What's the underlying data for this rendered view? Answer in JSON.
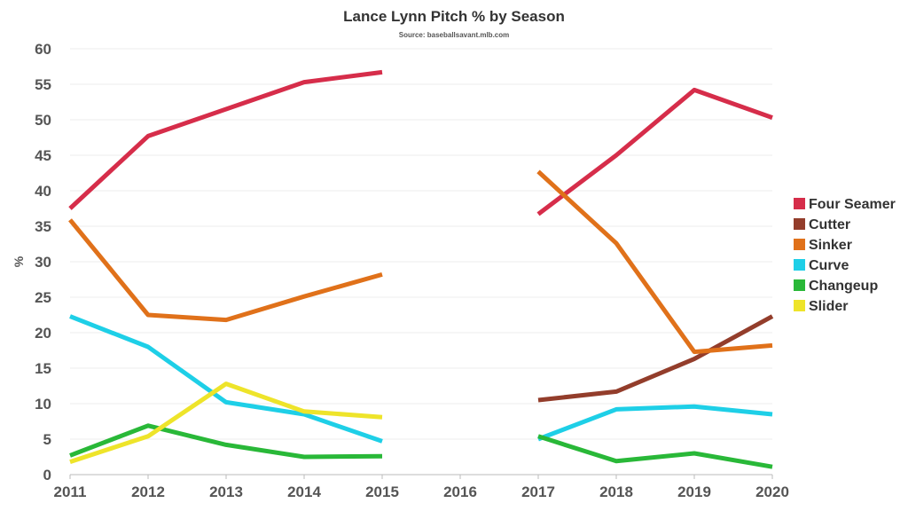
{
  "chart_data": {
    "type": "line",
    "title": "Lance Lynn Pitch % by Season",
    "subtitle": "Source: baseballsavant.mlb.com",
    "xlabel": "",
    "ylabel": "%",
    "x": [
      "2011",
      "2012",
      "2013",
      "2014",
      "2015",
      "2016",
      "2017",
      "2018",
      "2019",
      "2020"
    ],
    "ylim": [
      0,
      60
    ],
    "yticks": [
      "0",
      "5",
      "10",
      "15",
      "20",
      "25",
      "30",
      "35",
      "40",
      "45",
      "50",
      "55",
      "60"
    ],
    "grid": true,
    "legend_position": "right",
    "series": [
      {
        "name": "Four Seamer",
        "color": "#d62d4a",
        "values": [
          37.5,
          47.7,
          51.5,
          55.3,
          56.7,
          null,
          36.7,
          45.0,
          54.2,
          50.3
        ]
      },
      {
        "name": "Cutter",
        "color": "#933d2b",
        "values": [
          null,
          null,
          null,
          null,
          null,
          null,
          10.5,
          11.7,
          16.3,
          22.3
        ]
      },
      {
        "name": "Sinker",
        "color": "#e0711a",
        "values": [
          35.9,
          22.5,
          21.8,
          25.1,
          28.2,
          null,
          42.7,
          32.6,
          17.3,
          18.2
        ]
      },
      {
        "name": "Curve",
        "color": "#1ecfe7",
        "values": [
          22.3,
          18.0,
          10.2,
          8.5,
          4.7,
          null,
          5.0,
          9.2,
          9.6,
          8.5
        ]
      },
      {
        "name": "Changeup",
        "color": "#29b838",
        "values": [
          2.7,
          6.9,
          4.2,
          2.5,
          2.6,
          null,
          5.4,
          1.9,
          3.0,
          1.1
        ]
      },
      {
        "name": "Slider",
        "color": "#eee42a",
        "values": [
          1.8,
          5.4,
          12.8,
          8.9,
          8.1,
          null,
          null,
          null,
          null,
          null
        ]
      }
    ]
  }
}
